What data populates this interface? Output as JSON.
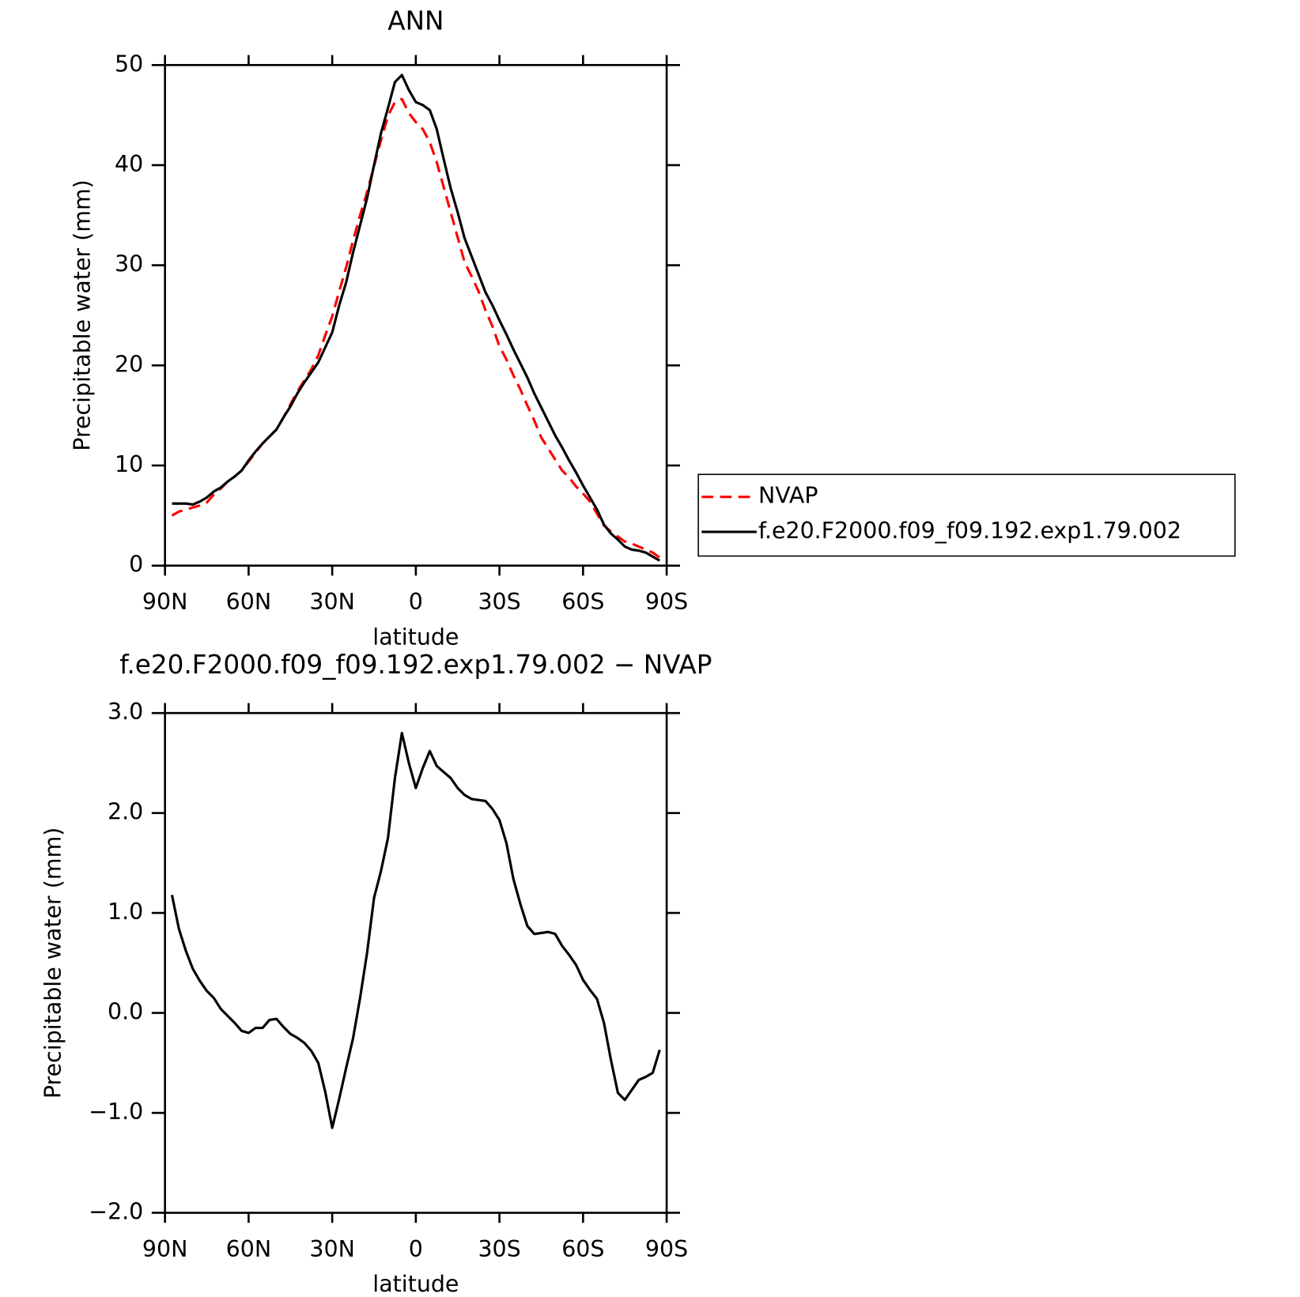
{
  "chart_data": [
    {
      "type": "line",
      "title": "ANN",
      "xlabel": "latitude",
      "ylabel": "Precipitable water (mm)",
      "x": [
        87.5,
        85,
        82.5,
        80,
        77.5,
        75,
        72.5,
        70,
        67.5,
        65,
        62.5,
        60,
        57.5,
        55,
        52.5,
        50,
        47.5,
        45,
        42.5,
        40,
        37.5,
        35,
        32.5,
        30,
        27.5,
        25,
        22.5,
        20,
        17.5,
        15,
        12.5,
        10,
        7.5,
        5,
        2.5,
        0,
        -2.5,
        -5,
        -7.5,
        -10,
        -12.5,
        -15,
        -17.5,
        -20,
        -22.5,
        -25,
        -27.5,
        -30,
        -32.5,
        -35,
        -37.5,
        -40,
        -42.5,
        -45,
        -47.5,
        -50,
        -52.5,
        -55,
        -57.5,
        -60,
        -62.5,
        -65,
        -67.5,
        -70,
        -72.5,
        -75,
        -77.5,
        -80,
        -82.5,
        -85,
        -87.5
      ],
      "series": [
        {
          "name": "NVAP",
          "color": "#ff0000",
          "style": "dashed",
          "values": [
            5.0,
            5.4,
            5.6,
            5.8,
            6.0,
            6.3,
            7.1,
            7.7,
            8.4,
            8.9,
            9.5,
            10.4,
            11.3,
            12.2,
            12.9,
            13.6,
            14.8,
            16.1,
            17.4,
            18.5,
            19.6,
            21.0,
            23.0,
            24.9,
            27.4,
            29.8,
            32.5,
            35.0,
            37.3,
            39.9,
            42.5,
            44.9,
            46.3,
            46.6,
            45.2,
            44.3,
            43.6,
            42.3,
            40.3,
            37.8,
            35.3,
            32.8,
            30.3,
            28.9,
            27.4,
            25.5,
            23.9,
            21.9,
            20.6,
            19.0,
            17.6,
            16.0,
            14.5,
            12.8,
            11.7,
            10.6,
            9.5,
            8.8,
            7.9,
            7.2,
            6.4,
            5.2,
            4.0,
            3.4,
            2.9,
            2.4,
            2.2,
            1.9,
            1.6,
            1.3,
            0.8
          ]
        },
        {
          "name": "f.e20.F2000.f09_f09.192.exp1.79.002",
          "color": "#000000",
          "style": "solid",
          "values": [
            6.2,
            6.2,
            6.2,
            6.1,
            6.4,
            6.8,
            7.4,
            7.8,
            8.4,
            8.9,
            9.5,
            10.5,
            11.4,
            12.2,
            12.9,
            13.6,
            14.8,
            15.9,
            17.2,
            18.3,
            19.3,
            20.3,
            21.8,
            23.3,
            26.0,
            28.3,
            31.3,
            34.0,
            36.7,
            40.0,
            43.2,
            45.7,
            48.3,
            49.0,
            47.5,
            46.3,
            46.0,
            45.5,
            43.6,
            40.6,
            37.7,
            35.3,
            32.7,
            30.9,
            29.1,
            27.3,
            26.0,
            24.5,
            23.1,
            21.6,
            20.2,
            18.8,
            17.2,
            15.8,
            14.4,
            13.0,
            11.8,
            10.5,
            9.3,
            8.0,
            6.8,
            5.6,
            4.1,
            3.2,
            2.6,
            1.9,
            1.6,
            1.5,
            1.3,
            0.9,
            0.5
          ]
        }
      ],
      "xlim": [
        90,
        -90
      ],
      "xticks": [
        {
          "value": 90,
          "label": "90N"
        },
        {
          "value": 60,
          "label": "60N"
        },
        {
          "value": 30,
          "label": "30N"
        },
        0,
        {
          "value": -30,
          "label": "30S"
        },
        {
          "value": -60,
          "label": "60S"
        },
        {
          "value": -90,
          "label": "90S"
        }
      ],
      "ylim": [
        0,
        50
      ],
      "yticks": [
        0,
        10,
        20,
        30,
        40,
        50
      ],
      "legend": "right"
    },
    {
      "type": "line",
      "title": "f.e20.F2000.f09_f09.192.exp1.79.002 − NVAP",
      "xlabel": "latitude",
      "ylabel": "Precipitable water (mm)",
      "x": [
        87.5,
        85,
        82.5,
        80,
        77.5,
        75,
        72.5,
        70,
        67.5,
        65,
        62.5,
        60,
        57.5,
        55,
        52.5,
        50,
        47.5,
        45,
        42.5,
        40,
        37.5,
        35,
        32.5,
        30,
        27.5,
        25,
        22.5,
        20,
        17.5,
        15,
        12.5,
        10,
        7.5,
        5,
        2.5,
        0,
        -2.5,
        -5,
        -7.5,
        -10,
        -12.5,
        -15,
        -17.5,
        -20,
        -22.5,
        -25,
        -27.5,
        -30,
        -32.5,
        -35,
        -37.5,
        -40,
        -42.5,
        -45,
        -47.5,
        -50,
        -52.5,
        -55,
        -57.5,
        -60,
        -62.5,
        -65,
        -67.5,
        -70,
        -72.5,
        -75,
        -77.5,
        -80,
        -82.5,
        -85,
        -87.5
      ],
      "series": [
        {
          "color": "#000000",
          "style": "solid",
          "values": [
            1.18,
            0.84,
            0.62,
            0.44,
            0.32,
            0.22,
            0.15,
            0.04,
            -0.03,
            -0.1,
            -0.18,
            -0.2,
            -0.15,
            -0.15,
            -0.07,
            -0.06,
            -0.14,
            -0.21,
            -0.25,
            -0.3,
            -0.38,
            -0.5,
            -0.79,
            -1.15,
            -0.86,
            -0.55,
            -0.25,
            0.15,
            0.6,
            1.15,
            1.42,
            1.75,
            2.35,
            2.8,
            2.5,
            2.25,
            2.45,
            2.62,
            2.47,
            2.41,
            2.35,
            2.25,
            2.18,
            2.14,
            2.13,
            2.12,
            2.04,
            1.93,
            1.7,
            1.34,
            1.09,
            0.87,
            0.79,
            0.8,
            0.81,
            0.79,
            0.67,
            0.58,
            0.48,
            0.33,
            0.23,
            0.14,
            -0.1,
            -0.47,
            -0.8,
            -0.87,
            -0.77,
            -0.67,
            -0.64,
            -0.6,
            -0.37
          ]
        }
      ],
      "xlim": [
        90,
        -90
      ],
      "xticks": [
        {
          "value": 90,
          "label": "90N"
        },
        {
          "value": 60,
          "label": "60N"
        },
        {
          "value": 30,
          "label": "30N"
        },
        0,
        {
          "value": -30,
          "label": "30S"
        },
        {
          "value": -60,
          "label": "60S"
        },
        {
          "value": -90,
          "label": "90S"
        }
      ],
      "ylim": [
        -2,
        3
      ],
      "yticks": [
        {
          "value": -2,
          "label": "−2.0"
        },
        {
          "value": -1,
          "label": "−1.0"
        },
        {
          "value": 0,
          "label": "0.0"
        },
        {
          "value": 1,
          "label": "1.0"
        },
        {
          "value": 2,
          "label": "2.0"
        },
        {
          "value": 3,
          "label": "3.0"
        }
      ]
    }
  ]
}
